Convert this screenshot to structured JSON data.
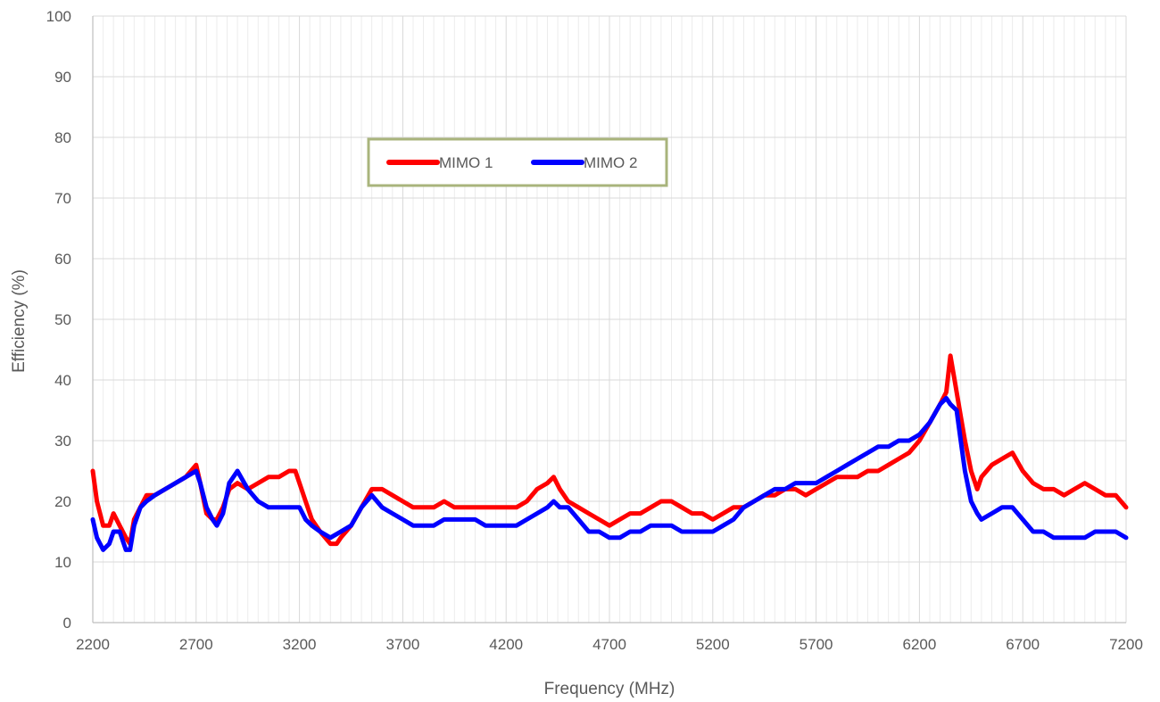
{
  "chart_data": {
    "type": "line",
    "title": "",
    "xlabel": "Frequency (MHz)",
    "ylabel": "Efficiency (%)",
    "xlim": [
      2200,
      7200
    ],
    "ylim": [
      0,
      100
    ],
    "x_ticks": [
      2200,
      2700,
      3200,
      3700,
      4200,
      4700,
      5200,
      5700,
      6200,
      6700,
      7200
    ],
    "y_ticks": [
      0,
      10,
      20,
      30,
      40,
      50,
      60,
      70,
      80,
      90,
      100
    ],
    "x_tick_labels": [
      "2200",
      "2700",
      "3200",
      "3700",
      "4200",
      "4700",
      "5200",
      "5700",
      "6200",
      "6700",
      "7200"
    ],
    "y_tick_labels": [
      "0",
      "10",
      "20",
      "30",
      "40",
      "50",
      "60",
      "70",
      "80",
      "90",
      "100"
    ],
    "grid": true,
    "minor_x_grid_step": 50,
    "legend_position": "upper-center",
    "series": [
      {
        "name": "MIMO 1",
        "color": "#ff0000",
        "points": [
          [
            2200,
            25
          ],
          [
            2220,
            20
          ],
          [
            2250,
            16
          ],
          [
            2280,
            16
          ],
          [
            2300,
            18
          ],
          [
            2330,
            16
          ],
          [
            2360,
            14
          ],
          [
            2380,
            13
          ],
          [
            2400,
            17
          ],
          [
            2430,
            19
          ],
          [
            2460,
            21
          ],
          [
            2500,
            21
          ],
          [
            2550,
            22
          ],
          [
            2600,
            23
          ],
          [
            2650,
            24
          ],
          [
            2700,
            26
          ],
          [
            2720,
            23
          ],
          [
            2750,
            18
          ],
          [
            2780,
            17
          ],
          [
            2800,
            17
          ],
          [
            2830,
            19
          ],
          [
            2860,
            22
          ],
          [
            2900,
            23
          ],
          [
            2950,
            22
          ],
          [
            3000,
            23
          ],
          [
            3050,
            24
          ],
          [
            3100,
            24
          ],
          [
            3150,
            25
          ],
          [
            3180,
            25
          ],
          [
            3200,
            23
          ],
          [
            3230,
            20
          ],
          [
            3260,
            17
          ],
          [
            3300,
            15
          ],
          [
            3350,
            13
          ],
          [
            3380,
            13
          ],
          [
            3400,
            14
          ],
          [
            3450,
            16
          ],
          [
            3500,
            19
          ],
          [
            3550,
            22
          ],
          [
            3600,
            22
          ],
          [
            3650,
            21
          ],
          [
            3700,
            20
          ],
          [
            3750,
            19
          ],
          [
            3800,
            19
          ],
          [
            3850,
            19
          ],
          [
            3900,
            20
          ],
          [
            3950,
            19
          ],
          [
            4000,
            19
          ],
          [
            4050,
            19
          ],
          [
            4100,
            19
          ],
          [
            4150,
            19
          ],
          [
            4200,
            19
          ],
          [
            4250,
            19
          ],
          [
            4300,
            20
          ],
          [
            4350,
            22
          ],
          [
            4400,
            23
          ],
          [
            4430,
            24
          ],
          [
            4460,
            22
          ],
          [
            4500,
            20
          ],
          [
            4550,
            19
          ],
          [
            4600,
            18
          ],
          [
            4650,
            17
          ],
          [
            4700,
            16
          ],
          [
            4750,
            17
          ],
          [
            4800,
            18
          ],
          [
            4850,
            18
          ],
          [
            4900,
            19
          ],
          [
            4950,
            20
          ],
          [
            5000,
            20
          ],
          [
            5050,
            19
          ],
          [
            5100,
            18
          ],
          [
            5150,
            18
          ],
          [
            5200,
            17
          ],
          [
            5250,
            18
          ],
          [
            5300,
            19
          ],
          [
            5350,
            19
          ],
          [
            5400,
            20
          ],
          [
            5450,
            21
          ],
          [
            5500,
            21
          ],
          [
            5550,
            22
          ],
          [
            5600,
            22
          ],
          [
            5650,
            21
          ],
          [
            5700,
            22
          ],
          [
            5750,
            23
          ],
          [
            5800,
            24
          ],
          [
            5850,
            24
          ],
          [
            5900,
            24
          ],
          [
            5950,
            25
          ],
          [
            6000,
            25
          ],
          [
            6050,
            26
          ],
          [
            6100,
            27
          ],
          [
            6150,
            28
          ],
          [
            6200,
            30
          ],
          [
            6250,
            33
          ],
          [
            6300,
            36
          ],
          [
            6330,
            38
          ],
          [
            6350,
            44
          ],
          [
            6370,
            40
          ],
          [
            6400,
            34
          ],
          [
            6420,
            30
          ],
          [
            6450,
            25
          ],
          [
            6480,
            22
          ],
          [
            6500,
            24
          ],
          [
            6550,
            26
          ],
          [
            6600,
            27
          ],
          [
            6650,
            28
          ],
          [
            6700,
            25
          ],
          [
            6750,
            23
          ],
          [
            6800,
            22
          ],
          [
            6850,
            22
          ],
          [
            6900,
            21
          ],
          [
            6950,
            22
          ],
          [
            7000,
            23
          ],
          [
            7050,
            22
          ],
          [
            7100,
            21
          ],
          [
            7150,
            21
          ],
          [
            7200,
            19
          ]
        ]
      },
      {
        "name": "MIMO 2",
        "color": "#0000ff",
        "points": [
          [
            2200,
            17
          ],
          [
            2220,
            14
          ],
          [
            2250,
            12
          ],
          [
            2280,
            13
          ],
          [
            2300,
            15
          ],
          [
            2330,
            15
          ],
          [
            2360,
            12
          ],
          [
            2380,
            12
          ],
          [
            2400,
            16
          ],
          [
            2430,
            19
          ],
          [
            2460,
            20
          ],
          [
            2500,
            21
          ],
          [
            2550,
            22
          ],
          [
            2600,
            23
          ],
          [
            2650,
            24
          ],
          [
            2700,
            25
          ],
          [
            2720,
            23
          ],
          [
            2750,
            19
          ],
          [
            2780,
            17
          ],
          [
            2800,
            16
          ],
          [
            2830,
            18
          ],
          [
            2860,
            23
          ],
          [
            2900,
            25
          ],
          [
            2950,
            22
          ],
          [
            3000,
            20
          ],
          [
            3050,
            19
          ],
          [
            3100,
            19
          ],
          [
            3150,
            19
          ],
          [
            3200,
            19
          ],
          [
            3230,
            17
          ],
          [
            3260,
            16
          ],
          [
            3300,
            15
          ],
          [
            3350,
            14
          ],
          [
            3400,
            15
          ],
          [
            3450,
            16
          ],
          [
            3500,
            19
          ],
          [
            3550,
            21
          ],
          [
            3600,
            19
          ],
          [
            3650,
            18
          ],
          [
            3700,
            17
          ],
          [
            3750,
            16
          ],
          [
            3800,
            16
          ],
          [
            3850,
            16
          ],
          [
            3900,
            17
          ],
          [
            3950,
            17
          ],
          [
            4000,
            17
          ],
          [
            4050,
            17
          ],
          [
            4100,
            16
          ],
          [
            4150,
            16
          ],
          [
            4200,
            16
          ],
          [
            4250,
            16
          ],
          [
            4300,
            17
          ],
          [
            4350,
            18
          ],
          [
            4400,
            19
          ],
          [
            4430,
            20
          ],
          [
            4460,
            19
          ],
          [
            4500,
            19
          ],
          [
            4550,
            17
          ],
          [
            4600,
            15
          ],
          [
            4650,
            15
          ],
          [
            4700,
            14
          ],
          [
            4750,
            14
          ],
          [
            4800,
            15
          ],
          [
            4850,
            15
          ],
          [
            4900,
            16
          ],
          [
            4950,
            16
          ],
          [
            5000,
            16
          ],
          [
            5050,
            15
          ],
          [
            5100,
            15
          ],
          [
            5150,
            15
          ],
          [
            5200,
            15
          ],
          [
            5250,
            16
          ],
          [
            5300,
            17
          ],
          [
            5350,
            19
          ],
          [
            5400,
            20
          ],
          [
            5450,
            21
          ],
          [
            5500,
            22
          ],
          [
            5550,
            22
          ],
          [
            5600,
            23
          ],
          [
            5650,
            23
          ],
          [
            5700,
            23
          ],
          [
            5750,
            24
          ],
          [
            5800,
            25
          ],
          [
            5850,
            26
          ],
          [
            5900,
            27
          ],
          [
            5950,
            28
          ],
          [
            6000,
            29
          ],
          [
            6050,
            29
          ],
          [
            6100,
            30
          ],
          [
            6150,
            30
          ],
          [
            6200,
            31
          ],
          [
            6250,
            33
          ],
          [
            6300,
            36
          ],
          [
            6330,
            37
          ],
          [
            6350,
            36
          ],
          [
            6380,
            35
          ],
          [
            6400,
            30
          ],
          [
            6420,
            25
          ],
          [
            6450,
            20
          ],
          [
            6480,
            18
          ],
          [
            6500,
            17
          ],
          [
            6550,
            18
          ],
          [
            6600,
            19
          ],
          [
            6650,
            19
          ],
          [
            6700,
            17
          ],
          [
            6750,
            15
          ],
          [
            6800,
            15
          ],
          [
            6850,
            14
          ],
          [
            6900,
            14
          ],
          [
            6950,
            14
          ],
          [
            7000,
            14
          ],
          [
            7050,
            15
          ],
          [
            7100,
            15
          ],
          [
            7150,
            15
          ],
          [
            7200,
            14
          ]
        ]
      }
    ]
  }
}
